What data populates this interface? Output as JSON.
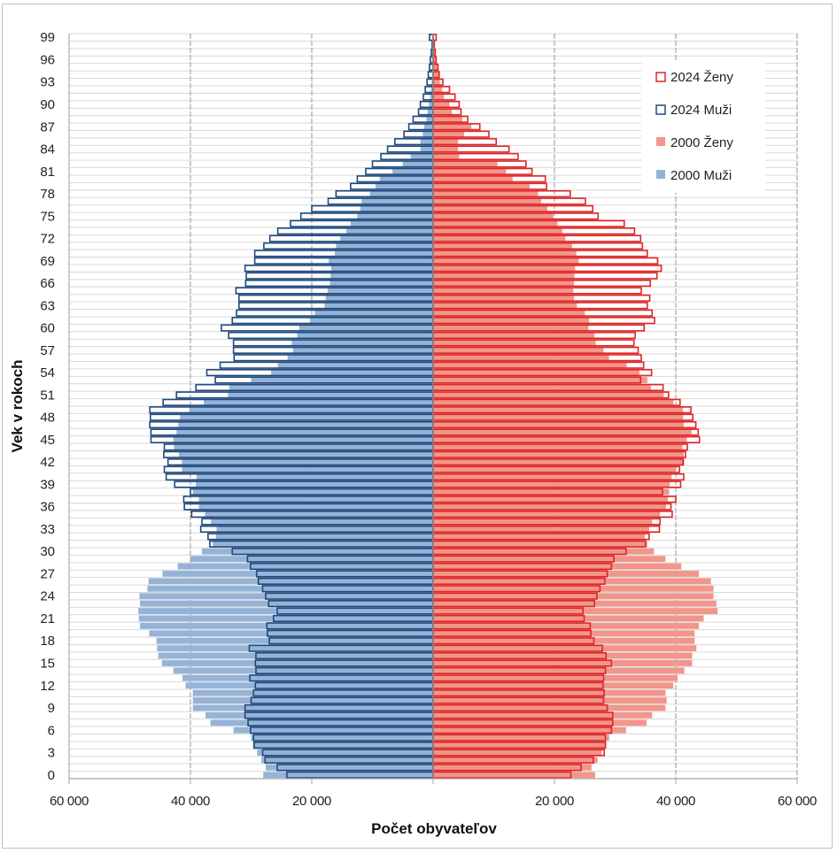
{
  "chart_data": {
    "type": "bar",
    "subtype": "population-pyramid",
    "title": "",
    "xlabel": "Počet obyvateľov",
    "ylabel": "Vek v rokoch",
    "xlim": [
      -60000,
      60000
    ],
    "x_ticks": [
      -60000,
      -40000,
      -20000,
      0,
      20000,
      40000,
      60000
    ],
    "x_tick_labels": [
      "60 000",
      "40 000",
      "20 000",
      "",
      "20 000",
      "40 000",
      "60 000"
    ],
    "y_tick_labels": [
      "0",
      "3",
      "6",
      "9",
      "12",
      "15",
      "18",
      "21",
      "24",
      "27",
      "30",
      "33",
      "36",
      "39",
      "42",
      "45",
      "48",
      "51",
      "54",
      "57",
      "60",
      "63",
      "66",
      "69",
      "72",
      "75",
      "78",
      "81",
      "84",
      "87",
      "90",
      "93",
      "96",
      "99"
    ],
    "ages": [
      0,
      1,
      2,
      3,
      4,
      5,
      6,
      7,
      8,
      9,
      10,
      11,
      12,
      13,
      14,
      15,
      16,
      17,
      18,
      19,
      20,
      21,
      22,
      23,
      24,
      25,
      26,
      27,
      28,
      29,
      30,
      31,
      32,
      33,
      34,
      35,
      36,
      37,
      38,
      39,
      40,
      41,
      42,
      43,
      44,
      45,
      46,
      47,
      48,
      49,
      50,
      51,
      52,
      53,
      54,
      55,
      56,
      57,
      58,
      59,
      60,
      61,
      62,
      63,
      64,
      65,
      66,
      67,
      68,
      69,
      70,
      71,
      72,
      73,
      74,
      75,
      76,
      77,
      78,
      79,
      80,
      81,
      82,
      83,
      84,
      85,
      86,
      87,
      88,
      89,
      90,
      91,
      92,
      93,
      94,
      95,
      96,
      97,
      98,
      99
    ],
    "grid": true,
    "legend_position": "top-right",
    "series": [
      {
        "name": "2000 Muži",
        "side": "left",
        "style": "filled",
        "color": "#95b3d7",
        "values": [
          28000,
          27600,
          28300,
          29000,
          29700,
          30000,
          32900,
          36700,
          37500,
          39600,
          39600,
          39600,
          40800,
          41300,
          42800,
          44700,
          45300,
          45500,
          45600,
          46800,
          48300,
          48500,
          48600,
          48300,
          48400,
          47100,
          46900,
          44600,
          42100,
          40000,
          38100,
          36300,
          35800,
          35700,
          36600,
          37600,
          38600,
          38600,
          39600,
          39100,
          39000,
          41400,
          41400,
          41900,
          42700,
          42800,
          42300,
          42000,
          41700,
          40200,
          37800,
          33800,
          33600,
          30000,
          26700,
          25600,
          24000,
          23100,
          23300,
          22400,
          22100,
          20300,
          19500,
          17900,
          17700,
          17400,
          17000,
          16900,
          16800,
          17200,
          16200,
          16000,
          15300,
          14300,
          13600,
          12500,
          12000,
          11800,
          10400,
          9500,
          8800,
          6700,
          5000,
          3700,
          2100,
          2100,
          1700,
          1500,
          1100,
          900,
          700,
          500,
          350,
          250,
          150,
          100,
          60,
          40,
          25,
          20
        ]
      },
      {
        "name": "2000 Ženy",
        "side": "right",
        "style": "filled",
        "color": "#f2958a",
        "values": [
          26700,
          26100,
          27100,
          27800,
          28500,
          29000,
          31800,
          35200,
          36100,
          38300,
          38500,
          38300,
          39600,
          40300,
          41400,
          42700,
          42700,
          43400,
          43100,
          43100,
          43800,
          44600,
          46900,
          46700,
          46200,
          46200,
          45800,
          43800,
          40900,
          38300,
          36400,
          35300,
          34900,
          35600,
          36100,
          37400,
          38400,
          38700,
          38900,
          39000,
          39300,
          40000,
          41400,
          41300,
          41100,
          41800,
          42600,
          41300,
          41200,
          41200,
          39600,
          38000,
          35900,
          35300,
          34000,
          31900,
          29000,
          28100,
          26800,
          26600,
          25600,
          25700,
          25000,
          23700,
          23200,
          23100,
          23200,
          23300,
          23400,
          24000,
          23600,
          22900,
          21800,
          21300,
          20500,
          19800,
          18800,
          17800,
          17300,
          15900,
          13100,
          12000,
          10600,
          4300,
          4100,
          4100,
          5100,
          6300,
          4800,
          3100,
          2700,
          1800,
          1500,
          1100,
          900,
          700,
          500,
          300,
          200,
          150
        ]
      },
      {
        "name": "2024 Muži",
        "side": "left",
        "style": "outline",
        "color": "#1f497d",
        "values": [
          24100,
          25700,
          27700,
          28100,
          29500,
          29600,
          30100,
          30500,
          31000,
          31000,
          30000,
          29600,
          29300,
          30200,
          29200,
          29300,
          29200,
          30300,
          27000,
          27300,
          27400,
          26300,
          25700,
          27100,
          27600,
          28100,
          28800,
          29100,
          30100,
          30600,
          33100,
          36800,
          37100,
          38300,
          38100,
          39800,
          41000,
          41100,
          40000,
          42600,
          44000,
          44300,
          43700,
          44400,
          44300,
          46500,
          46500,
          46700,
          46600,
          46700,
          44500,
          42300,
          39100,
          35900,
          37300,
          35100,
          32800,
          32900,
          32900,
          33700,
          34900,
          33100,
          32400,
          32000,
          32000,
          32500,
          30900,
          30800,
          31000,
          29400,
          29400,
          27900,
          26900,
          25600,
          23500,
          21800,
          20000,
          17300,
          16000,
          13600,
          12500,
          11100,
          10000,
          8600,
          7500,
          6300,
          4800,
          4000,
          3300,
          2400,
          2100,
          1600,
          1300,
          1000,
          800,
          600,
          450,
          300,
          150,
          600
        ]
      },
      {
        "name": "2024 Ženy",
        "side": "right",
        "style": "outline",
        "color": "#e02525",
        "values": [
          22700,
          24400,
          26400,
          28200,
          28400,
          28400,
          29400,
          29600,
          29600,
          28700,
          28100,
          28200,
          28000,
          28100,
          28400,
          29400,
          28500,
          27900,
          26500,
          26000,
          25900,
          24900,
          24700,
          26600,
          27000,
          27500,
          28300,
          28700,
          29400,
          29800,
          31800,
          35000,
          35600,
          37300,
          37400,
          39400,
          39200,
          40000,
          37800,
          40800,
          41300,
          40600,
          41200,
          41600,
          41900,
          43900,
          43700,
          43300,
          42800,
          42500,
          40700,
          38800,
          37900,
          34200,
          36000,
          34700,
          34300,
          33800,
          33100,
          33300,
          34800,
          36500,
          36100,
          35300,
          35700,
          34300,
          35800,
          36900,
          37600,
          37000,
          35300,
          34500,
          34200,
          33200,
          31500,
          27200,
          26300,
          25100,
          22600,
          18700,
          18500,
          16300,
          15300,
          14000,
          12500,
          10400,
          9200,
          7700,
          5700,
          4600,
          4300,
          3600,
          2700,
          1600,
          1000,
          800,
          500,
          350,
          200,
          500
        ]
      }
    ]
  }
}
